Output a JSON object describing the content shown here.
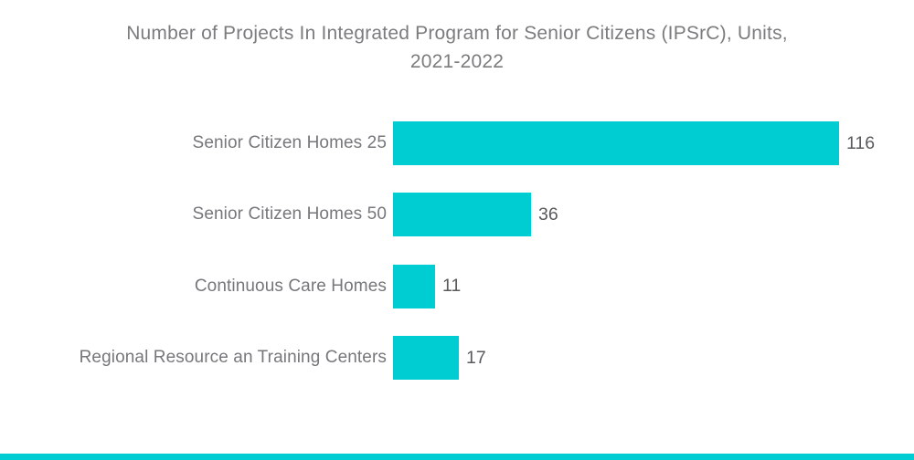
{
  "title": {
    "line1": "Number of Projects In Integrated Program for Senior Citizens (IPSrC), Units,",
    "line2": "2021-2022"
  },
  "chart_data": {
    "type": "bar",
    "orientation": "horizontal",
    "title": "Number of Projects In Integrated Program for Senior Citizens (IPSrC), Units, 2021-2022",
    "categories": [
      "Senior Citizen Homes 25",
      "Senior Citizen Homes 50",
      "Continuous Care Homes",
      "Regional Resource an Training Centers"
    ],
    "values": [
      116,
      36,
      11,
      17
    ],
    "xlabel": "",
    "ylabel": "",
    "xlim": [
      0,
      116
    ],
    "grid": false,
    "legend": false,
    "value_labels_position": "right-of-bar"
  },
  "colors": {
    "bar": "#00CDD1",
    "footer_strip": "#00CDD1",
    "title_text": "#7b7c7e",
    "label_text": "#76777a",
    "value_text": "#595a5c",
    "background": "#ffffff"
  }
}
